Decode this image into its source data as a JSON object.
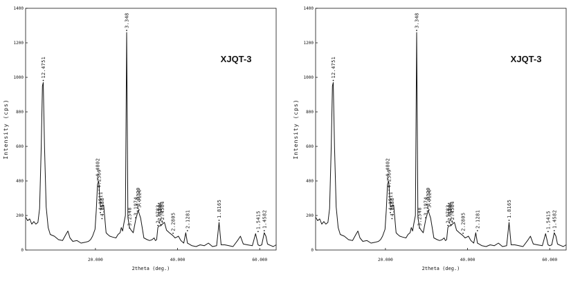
{
  "chart_data": [
    {
      "type": "line",
      "sample_label": "XJQT-3",
      "xlabel": "2theta (deg.)",
      "ylabel": "Intensity (cps)",
      "xlim": [
        3,
        64
      ],
      "ylim": [
        0,
        1400
      ],
      "x_ticks": [
        20,
        40,
        60
      ],
      "x_tick_labels": [
        "20.000",
        "40.000",
        "60.000"
      ],
      "y_ticks": [
        0,
        200,
        400,
        600,
        800,
        1000,
        1200,
        1400
      ],
      "y_tick_labels": [
        "0",
        "200",
        "400",
        "600",
        "800",
        "1000",
        "1200",
        "1400"
      ],
      "grid": false,
      "series": [
        {
          "x": [
            3.0,
            3.5,
            4.0,
            4.5,
            5.0,
            5.5,
            6.0,
            6.4,
            6.8,
            7.1,
            7.3,
            7.6,
            8.0,
            8.5,
            9.0,
            10.0,
            11.0,
            12.0,
            12.8,
            13.3,
            13.8,
            14.5,
            15.5,
            16.5,
            17.5,
            18.3,
            18.8,
            19.3,
            19.6,
            19.9,
            20.2,
            20.5,
            20.8,
            21.2,
            22.0,
            22.6,
            23.0,
            23.5,
            24.2,
            25.0,
            25.5,
            26.0,
            26.3,
            26.6,
            26.9,
            27.3,
            27.6,
            27.9,
            28.3,
            28.7,
            29.2,
            29.8,
            30.4,
            31.0,
            31.8,
            32.6,
            33.2,
            33.8,
            34.3,
            34.6,
            34.9,
            35.2,
            35.5,
            35.9,
            36.3,
            36.8,
            37.3,
            38.0,
            38.8,
            39.4,
            39.8,
            40.2,
            40.8,
            41.5,
            42.0,
            42.4,
            42.8,
            43.5,
            44.5,
            45.5,
            46.5,
            47.5,
            48.5,
            49.5,
            50.1,
            50.6,
            51.5,
            52.5,
            53.5,
            54.6,
            55.3,
            56.0,
            57.0,
            58.2,
            59.0,
            59.6,
            60.0,
            60.5,
            61.1,
            61.5,
            61.9,
            62.3,
            62.8,
            63.3,
            64.0
          ],
          "y": [
            190,
            170,
            180,
            150,
            165,
            150,
            160,
            240,
            600,
            950,
            970,
            600,
            250,
            130,
            90,
            80,
            60,
            55,
            90,
            110,
            70,
            50,
            55,
            40,
            45,
            50,
            60,
            80,
            100,
            120,
            230,
            380,
            400,
            250,
            260,
            100,
            90,
            80,
            75,
            70,
            90,
            100,
            130,
            110,
            150,
            200,
            1260,
            190,
            130,
            115,
            100,
            175,
            230,
            185,
            70,
            60,
            55,
            60,
            70,
            55,
            60,
            130,
            140,
            140,
            150,
            160,
            115,
            100,
            85,
            70,
            75,
            80,
            55,
            40,
            100,
            40,
            35,
            25,
            20,
            30,
            25,
            40,
            20,
            25,
            160,
            30,
            30,
            25,
            20,
            55,
            80,
            35,
            30,
            25,
            95,
            30,
            25,
            30,
            100,
            80,
            35,
            30,
            25,
            20,
            30
          ]
        }
      ],
      "peak_labels": [
        {
          "x": 7.3,
          "y": 970,
          "label": "12.4751"
        },
        {
          "x": 20.5,
          "y": 400,
          "label": "4.4802"
        },
        {
          "x": 20.9,
          "y": 335,
          "label": "4.2569"
        },
        {
          "x": 21.2,
          "y": 205,
          "label": "4.1511"
        },
        {
          "x": 21.6,
          "y": 170,
          "label": "4.0688"
        },
        {
          "x": 27.6,
          "y": 1260,
          "label": "3.348"
        },
        {
          "x": 28.3,
          "y": 115,
          "label": "3.2548"
        },
        {
          "x": 29.8,
          "y": 175,
          "label": "3.1974"
        },
        {
          "x": 30.4,
          "y": 230,
          "label": "3.0329"
        },
        {
          "x": 30.6,
          "y": 220,
          "label": "3.0120"
        },
        {
          "x": 35.2,
          "y": 130,
          "label": "2.9783"
        },
        {
          "x": 35.6,
          "y": 145,
          "label": "2.8744"
        },
        {
          "x": 35.9,
          "y": 135,
          "label": "2.5564"
        },
        {
          "x": 36.3,
          "y": 150,
          "label": "2.4564"
        },
        {
          "x": 38.9,
          "y": 85,
          "label": "2.2805"
        },
        {
          "x": 42.4,
          "y": 100,
          "label": "2.1281"
        },
        {
          "x": 50.1,
          "y": 160,
          "label": "1.8165"
        },
        {
          "x": 59.6,
          "y": 95,
          "label": "1.5415"
        },
        {
          "x": 61.1,
          "y": 100,
          "label": "1.4582"
        }
      ]
    },
    {
      "type": "line",
      "sample_label": "XJQT-3",
      "xlabel": "2theta (deg.)",
      "ylabel": "Intensity (cps)",
      "xlim": [
        3,
        64
      ],
      "ylim": [
        0,
        1400
      ],
      "x_ticks": [
        20,
        40,
        60
      ],
      "x_tick_labels": [
        "20.000",
        "40.000",
        "60.000"
      ],
      "y_ticks": [
        0,
        200,
        400,
        600,
        800,
        1000,
        1200,
        1400
      ],
      "y_tick_labels": [
        "0",
        "200",
        "400",
        "600",
        "800",
        "1000",
        "1200",
        "1400"
      ],
      "grid": false,
      "series": [
        {
          "x": [
            3.0,
            3.5,
            4.0,
            4.5,
            5.0,
            5.5,
            6.0,
            6.4,
            6.8,
            7.1,
            7.3,
            7.6,
            8.0,
            8.5,
            9.0,
            10.0,
            11.0,
            12.0,
            12.8,
            13.3,
            13.8,
            14.5,
            15.5,
            16.5,
            17.5,
            18.3,
            18.8,
            19.3,
            19.6,
            19.9,
            20.2,
            20.5,
            20.8,
            21.2,
            22.0,
            22.6,
            23.0,
            23.5,
            24.2,
            25.0,
            25.5,
            26.0,
            26.3,
            26.6,
            26.9,
            27.3,
            27.6,
            27.9,
            28.3,
            28.7,
            29.2,
            29.8,
            30.4,
            31.0,
            31.8,
            32.6,
            33.2,
            33.8,
            34.3,
            34.6,
            34.9,
            35.2,
            35.5,
            35.9,
            36.3,
            36.8,
            37.3,
            38.0,
            38.8,
            39.4,
            39.8,
            40.2,
            40.8,
            41.5,
            42.0,
            42.4,
            42.8,
            43.5,
            44.5,
            45.5,
            46.5,
            47.5,
            48.5,
            49.5,
            50.1,
            50.6,
            51.5,
            52.5,
            53.5,
            54.6,
            55.3,
            56.0,
            57.0,
            58.2,
            59.0,
            59.6,
            60.0,
            60.5,
            61.1,
            61.5,
            61.9,
            62.3,
            62.8,
            63.3,
            64.0
          ],
          "y": [
            190,
            170,
            180,
            150,
            165,
            150,
            160,
            240,
            600,
            950,
            970,
            600,
            250,
            130,
            90,
            80,
            60,
            55,
            90,
            110,
            70,
            50,
            55,
            40,
            45,
            50,
            60,
            80,
            100,
            120,
            230,
            380,
            400,
            250,
            260,
            100,
            90,
            80,
            75,
            70,
            90,
            100,
            130,
            110,
            150,
            200,
            1260,
            190,
            130,
            115,
            100,
            175,
            230,
            185,
            70,
            60,
            55,
            60,
            70,
            55,
            60,
            130,
            140,
            140,
            150,
            160,
            115,
            100,
            85,
            70,
            75,
            80,
            55,
            40,
            100,
            40,
            35,
            25,
            20,
            30,
            25,
            40,
            20,
            25,
            160,
            30,
            30,
            25,
            20,
            55,
            80,
            35,
            30,
            25,
            95,
            30,
            25,
            30,
            100,
            80,
            35,
            30,
            25,
            20,
            30
          ]
        }
      ],
      "peak_labels": [
        {
          "x": 7.3,
          "y": 970,
          "label": "12.4751"
        },
        {
          "x": 20.5,
          "y": 400,
          "label": "4.4802"
        },
        {
          "x": 20.9,
          "y": 335,
          "label": "4.2569"
        },
        {
          "x": 21.2,
          "y": 205,
          "label": "4.1511"
        },
        {
          "x": 21.6,
          "y": 170,
          "label": "4.0688"
        },
        {
          "x": 27.6,
          "y": 1260,
          "label": "3.348"
        },
        {
          "x": 28.3,
          "y": 115,
          "label": "3.2548"
        },
        {
          "x": 29.8,
          "y": 175,
          "label": "3.1974"
        },
        {
          "x": 30.4,
          "y": 230,
          "label": "3.0329"
        },
        {
          "x": 30.6,
          "y": 220,
          "label": "3.0120"
        },
        {
          "x": 35.2,
          "y": 130,
          "label": "2.9783"
        },
        {
          "x": 35.6,
          "y": 145,
          "label": "2.8744"
        },
        {
          "x": 35.9,
          "y": 135,
          "label": "2.5564"
        },
        {
          "x": 36.3,
          "y": 150,
          "label": "2.4564"
        },
        {
          "x": 38.9,
          "y": 85,
          "label": "2.2805"
        },
        {
          "x": 42.4,
          "y": 100,
          "label": "2.1281"
        },
        {
          "x": 50.1,
          "y": 160,
          "label": "1.8165"
        },
        {
          "x": 59.6,
          "y": 95,
          "label": "1.5415"
        },
        {
          "x": 61.1,
          "y": 100,
          "label": "1.4582"
        }
      ]
    }
  ]
}
